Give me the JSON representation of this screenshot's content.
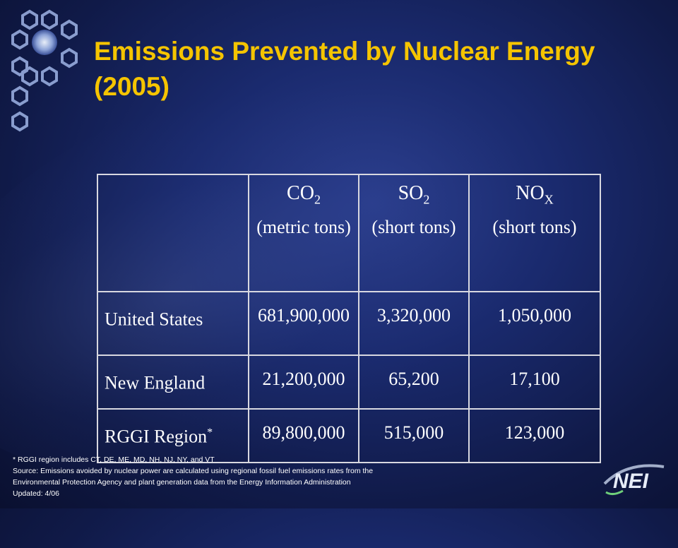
{
  "slide": {
    "title": "Emissions Prevented by Nuclear Energy (2005)",
    "colors": {
      "title": "#f5c400",
      "background": "#1a2a6e",
      "text": "#ffffff"
    },
    "logo_text": "NEI"
  },
  "table": {
    "headers": [
      {
        "formula": "CO",
        "sub": "2",
        "unit": "(metric tons)"
      },
      {
        "formula": "SO",
        "sub": "2",
        "unit": "(short tons)"
      },
      {
        "formula": "NO",
        "sub": "X",
        "unit": "(short tons)"
      }
    ],
    "rows": [
      {
        "label": "United States",
        "label_mark": "",
        "values": [
          "681,900,000",
          "3,320,000",
          "1,050,000"
        ]
      },
      {
        "label": "New England",
        "label_mark": "",
        "values": [
          "21,200,000",
          "65,200",
          "17,100"
        ]
      },
      {
        "label": "RGGI Region",
        "label_mark": "*",
        "values": [
          "89,800,000",
          "515,000",
          "123,000"
        ]
      }
    ]
  },
  "footnotes": [
    "* RGGI region includes CT, DE, ME, MD, NH, NJ, NY, and VT",
    "Source: Emissions avoided by nuclear power are calculated using regional fossil fuel emissions rates from the",
    "Environmental Protection Agency and plant generation data from the Energy Information Administration",
    "Updated: 4/06"
  ]
}
